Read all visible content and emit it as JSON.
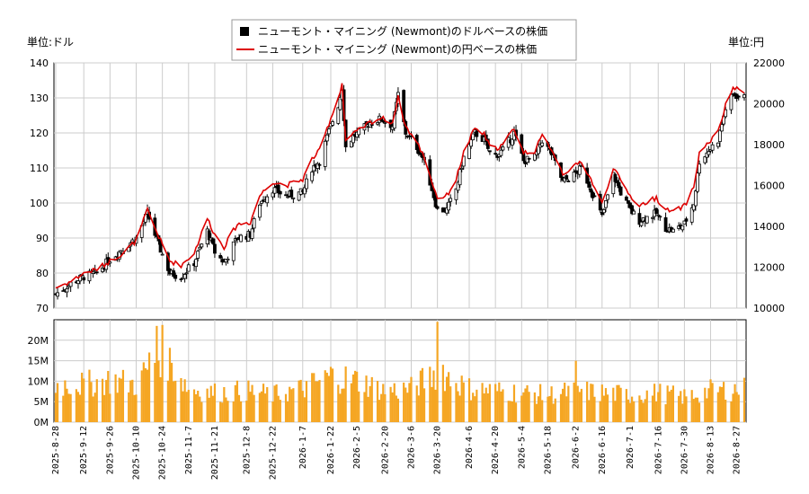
{
  "legend": {
    "usd": "ニューモント・マイニング (Newmont)のドルベースの株価",
    "jpy": "ニューモント・マイニング (Newmont)の円ベースの株価"
  },
  "units": {
    "left": "単位:ドル",
    "right": "単位:円"
  },
  "colors": {
    "candle": "#000000",
    "jpy_line": "#dd0000",
    "volume": "#f5a623",
    "grid": "#cccccc"
  },
  "chart_data": {
    "type": "candlestick",
    "x_range": [
      "2025-08-28",
      "2026-08-31"
    ],
    "x_ticks": [
      "2025-8-28",
      "2025-9-12",
      "2025-9-26",
      "2025-10-10",
      "2025-10-24",
      "2025-11-7",
      "2025-11-21",
      "2025-12-8",
      "2025-12-22",
      "2026-1-7",
      "2026-1-22",
      "2026-2-5",
      "2026-2-20",
      "2026-3-6",
      "2026-3-20",
      "2026-4-6",
      "2026-4-20",
      "2026-5-4",
      "2026-5-18",
      "2026-6-2",
      "2026-6-16",
      "2026-7-1",
      "2026-7-16",
      "2026-7-30",
      "2026-8-13",
      "2026-8-27"
    ],
    "price_axis_usd": {
      "min": 70,
      "max": 140,
      "ticks": [
        70,
        80,
        90,
        100,
        110,
        120,
        130,
        140
      ]
    },
    "price_axis_jpy": {
      "min": 10000,
      "max": 22000,
      "ticks": [
        10000,
        12000,
        14000,
        16000,
        18000,
        20000,
        22000
      ]
    },
    "volume_axis": {
      "min": 0,
      "max": 25000000,
      "ticks": [
        0,
        5000000,
        10000000,
        15000000,
        20000000
      ],
      "tick_labels": [
        "0M",
        "5M",
        "10M",
        "15M",
        "20M"
      ]
    },
    "usd_close_anchors": [
      [
        "2025-08-28",
        74
      ],
      [
        "2025-09-05",
        77
      ],
      [
        "2025-09-12",
        79
      ],
      [
        "2025-09-19",
        80
      ],
      [
        "2025-09-26",
        84
      ],
      [
        "2025-10-03",
        87
      ],
      [
        "2025-10-10",
        90
      ],
      [
        "2025-10-16",
        97
      ],
      [
        "2025-10-22",
        88
      ],
      [
        "2025-10-28",
        80
      ],
      [
        "2025-11-03",
        79
      ],
      [
        "2025-11-10",
        83
      ],
      [
        "2025-11-17",
        92
      ],
      [
        "2025-11-21",
        86
      ],
      [
        "2025-11-26",
        83
      ],
      [
        "2025-12-03",
        90
      ],
      [
        "2025-12-10",
        91
      ],
      [
        "2025-12-15",
        100
      ],
      [
        "2025-12-22",
        104
      ],
      [
        "2025-12-29",
        102
      ],
      [
        "2026-01-07",
        103
      ],
      [
        "2026-01-12",
        110
      ],
      [
        "2026-01-16",
        112
      ],
      [
        "2026-01-22",
        122
      ],
      [
        "2026-01-26",
        128
      ],
      [
        "2026-01-28",
        133
      ],
      [
        "2026-01-30",
        116
      ],
      [
        "2026-02-03",
        119
      ],
      [
        "2026-02-06",
        120
      ],
      [
        "2026-02-12",
        123
      ],
      [
        "2026-02-18",
        124
      ],
      [
        "2026-02-24",
        122
      ],
      [
        "2026-02-27",
        131
      ],
      [
        "2026-03-03",
        120
      ],
      [
        "2026-03-09",
        116
      ],
      [
        "2026-03-13",
        112
      ],
      [
        "2026-03-17",
        104
      ],
      [
        "2026-03-20",
        98
      ],
      [
        "2026-03-25",
        98
      ],
      [
        "2026-03-30",
        104
      ],
      [
        "2026-04-03",
        113
      ],
      [
        "2026-04-09",
        120
      ],
      [
        "2026-04-14",
        118
      ],
      [
        "2026-04-18",
        113
      ],
      [
        "2026-04-24",
        115
      ],
      [
        "2026-04-30",
        120
      ],
      [
        "2026-05-05",
        112
      ],
      [
        "2026-05-11",
        113
      ],
      [
        "2026-05-15",
        118
      ],
      [
        "2026-05-20",
        114
      ],
      [
        "2026-05-26",
        106
      ],
      [
        "2026-06-01",
        108
      ],
      [
        "2026-06-05",
        110
      ],
      [
        "2026-06-10",
        104
      ],
      [
        "2026-06-16",
        96
      ],
      [
        "2026-06-22",
        108
      ],
      [
        "2026-06-26",
        103
      ],
      [
        "2026-07-01",
        98
      ],
      [
        "2026-07-06",
        95
      ],
      [
        "2026-07-10",
        96
      ],
      [
        "2026-07-15",
        97
      ],
      [
        "2026-07-20",
        93
      ],
      [
        "2026-07-24",
        92
      ],
      [
        "2026-07-30",
        94
      ],
      [
        "2026-08-04",
        100
      ],
      [
        "2026-08-07",
        112
      ],
      [
        "2026-08-12",
        115
      ],
      [
        "2026-08-17",
        118
      ],
      [
        "2026-08-21",
        127
      ],
      [
        "2026-08-25",
        131
      ],
      [
        "2026-08-31",
        130
      ]
    ],
    "jpy_close_anchors": [
      [
        "2025-08-28",
        11000
      ],
      [
        "2025-09-05",
        11300
      ],
      [
        "2025-09-12",
        11700
      ],
      [
        "2025-09-19",
        11900
      ],
      [
        "2025-09-26",
        12300
      ],
      [
        "2025-10-03",
        12700
      ],
      [
        "2025-10-10",
        13300
      ],
      [
        "2025-10-16",
        14800
      ],
      [
        "2025-10-22",
        13500
      ],
      [
        "2025-10-28",
        12300
      ],
      [
        "2025-11-03",
        12100
      ],
      [
        "2025-11-10",
        12700
      ],
      [
        "2025-11-17",
        14400
      ],
      [
        "2025-11-21",
        13600
      ],
      [
        "2025-11-26",
        13000
      ],
      [
        "2025-12-03",
        14100
      ],
      [
        "2025-12-10",
        14200
      ],
      [
        "2025-12-15",
        15500
      ],
      [
        "2025-12-22",
        16200
      ],
      [
        "2025-12-29",
        16000
      ],
      [
        "2026-01-07",
        16300
      ],
      [
        "2026-01-12",
        17300
      ],
      [
        "2026-01-16",
        17700
      ],
      [
        "2026-01-22",
        19300
      ],
      [
        "2026-01-26",
        20300
      ],
      [
        "2026-01-28",
        21000
      ],
      [
        "2026-01-30",
        18200
      ],
      [
        "2026-02-03",
        18500
      ],
      [
        "2026-02-06",
        18700
      ],
      [
        "2026-02-12",
        19100
      ],
      [
        "2026-02-18",
        19300
      ],
      [
        "2026-02-24",
        19100
      ],
      [
        "2026-02-27",
        20300
      ],
      [
        "2026-03-03",
        18900
      ],
      [
        "2026-03-09",
        18100
      ],
      [
        "2026-03-13",
        17400
      ],
      [
        "2026-03-17",
        16200
      ],
      [
        "2026-03-20",
        15400
      ],
      [
        "2026-03-25",
        15500
      ],
      [
        "2026-03-30",
        16300
      ],
      [
        "2026-04-03",
        17600
      ],
      [
        "2026-04-09",
        18800
      ],
      [
        "2026-04-14",
        18500
      ],
      [
        "2026-04-18",
        17700
      ],
      [
        "2026-04-24",
        18000
      ],
      [
        "2026-04-30",
        18800
      ],
      [
        "2026-05-05",
        17600
      ],
      [
        "2026-05-11",
        17700
      ],
      [
        "2026-05-15",
        18400
      ],
      [
        "2026-05-20",
        17800
      ],
      [
        "2026-05-26",
        16600
      ],
      [
        "2026-06-01",
        16900
      ],
      [
        "2026-06-05",
        17200
      ],
      [
        "2026-06-10",
        16300
      ],
      [
        "2026-06-16",
        15100
      ],
      [
        "2026-06-22",
        16900
      ],
      [
        "2026-06-26",
        16200
      ],
      [
        "2026-07-01",
        15500
      ],
      [
        "2026-07-06",
        15000
      ],
      [
        "2026-07-10",
        15200
      ],
      [
        "2026-07-15",
        15400
      ],
      [
        "2026-07-20",
        14800
      ],
      [
        "2026-07-24",
        14700
      ],
      [
        "2026-07-30",
        15000
      ],
      [
        "2026-08-04",
        15900
      ],
      [
        "2026-08-07",
        17600
      ],
      [
        "2026-08-12",
        18100
      ],
      [
        "2026-08-17",
        18600
      ],
      [
        "2026-08-21",
        19900
      ],
      [
        "2026-08-25",
        20800
      ],
      [
        "2026-08-31",
        20500
      ]
    ],
    "volume_anchors": [
      [
        "2025-08-28",
        9000000
      ],
      [
        "2025-09-12",
        9000000
      ],
      [
        "2025-09-26",
        10000000
      ],
      [
        "2025-10-10",
        9000000
      ],
      [
        "2025-10-20",
        15000000
      ],
      [
        "2025-10-24",
        17000000
      ],
      [
        "2025-11-07",
        8000000
      ],
      [
        "2025-11-21",
        7000000
      ],
      [
        "2025-12-08",
        7500000
      ],
      [
        "2025-12-22",
        6500000
      ],
      [
        "2026-01-07",
        8000000
      ],
      [
        "2026-01-22",
        11000000
      ],
      [
        "2026-02-05",
        10000000
      ],
      [
        "2026-02-20",
        7500000
      ],
      [
        "2026-03-06",
        8000000
      ],
      [
        "2026-03-20",
        12000000
      ],
      [
        "2026-04-06",
        8000000
      ],
      [
        "2026-04-20",
        7500000
      ],
      [
        "2026-05-04",
        7000000
      ],
      [
        "2026-05-18",
        6500000
      ],
      [
        "2026-06-02",
        7500000
      ],
      [
        "2026-06-16",
        7000000
      ],
      [
        "2026-07-01",
        6500000
      ],
      [
        "2026-07-16",
        7000000
      ],
      [
        "2026-07-30",
        6000000
      ],
      [
        "2026-08-13",
        7500000
      ],
      [
        "2026-08-31",
        8000000
      ]
    ],
    "volume_spikes": [
      [
        "2025-10-21",
        23500000
      ],
      [
        "2026-03-20",
        24500000
      ],
      [
        "2026-03-23",
        14000000
      ],
      [
        "2025-10-17",
        17000000
      ],
      [
        "2026-06-02",
        15000000
      ]
    ]
  }
}
